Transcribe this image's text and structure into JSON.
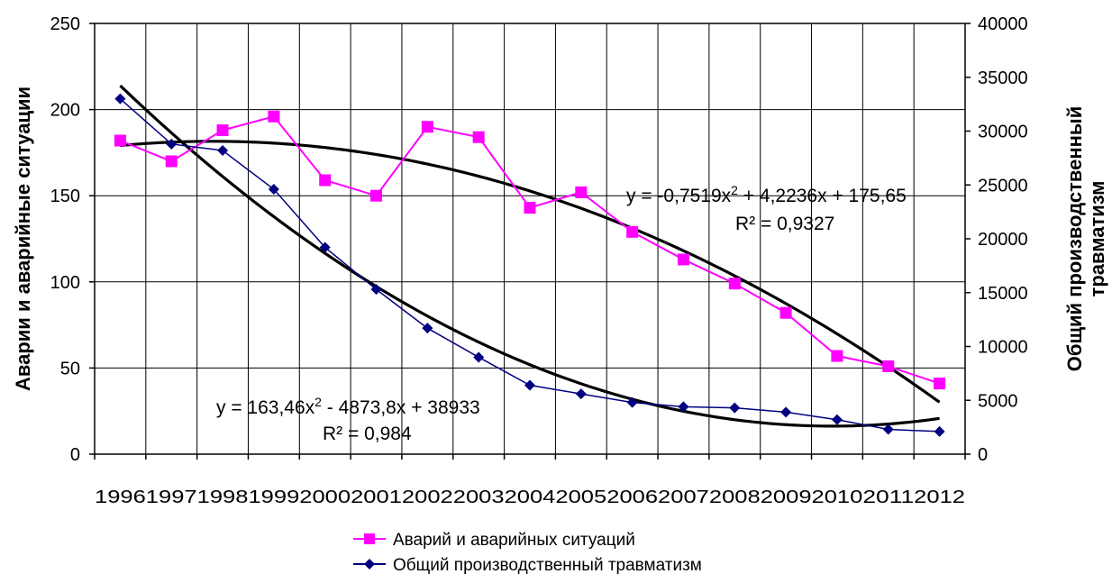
{
  "chart_data": {
    "type": "line",
    "categories": [
      "1996",
      "1997",
      "1998",
      "1999",
      "2000",
      "2001",
      "2002",
      "2003",
      "2004",
      "2005",
      "2006",
      "2007",
      "2008",
      "2009",
      "2010",
      "2011",
      "2012"
    ],
    "series": [
      {
        "name": "Аварий и аварийных ситуаций",
        "axis": "left",
        "color": "#ff00ff",
        "marker": "square",
        "values": [
          182,
          170,
          188,
          196,
          159,
          150,
          190,
          184,
          143,
          152,
          129,
          113,
          99,
          82,
          57,
          51,
          41
        ]
      },
      {
        "name": "Общий производственный травматизм",
        "axis": "right",
        "color": "#000080",
        "marker": "diamond",
        "values": [
          33000,
          28800,
          28200,
          24600,
          19200,
          15300,
          11700,
          9000,
          6400,
          5600,
          4800,
          4400,
          4300,
          3900,
          3200,
          2300,
          2100
        ]
      }
    ],
    "trendlines": [
      {
        "series": "Аварий и аварийных ситуаций",
        "axis": "left",
        "type": "polynomial",
        "coefficients": [
          -0.7519,
          4.2236,
          175.65
        ],
        "equation_prefix": "y = -0,7519x",
        "equation_suffix": " + 4,2236x + 175,65",
        "r2": "R² = 0,9327"
      },
      {
        "series": "Общий производственный травматизм",
        "axis": "right",
        "type": "polynomial",
        "coefficients": [
          163.46,
          -4873.8,
          38933
        ],
        "equation_prefix": "y = 163,46x",
        "equation_suffix": " - 4873,8x + 38933",
        "r2": "R² = 0,984"
      }
    ],
    "y_left": {
      "label": "Аварии и аварийные ситуации",
      "lim": [
        0,
        250
      ],
      "ticks": [
        "0",
        "50",
        "100",
        "150",
        "200",
        "250"
      ]
    },
    "y_right": {
      "label_line1": "Общий производственный",
      "label_line2": "травматизм",
      "lim": [
        0,
        40000
      ],
      "ticks": [
        "0",
        "5000",
        "10000",
        "15000",
        "20000",
        "25000",
        "30000",
        "35000",
        "40000"
      ]
    },
    "grid": true,
    "legend_position": "bottom"
  }
}
